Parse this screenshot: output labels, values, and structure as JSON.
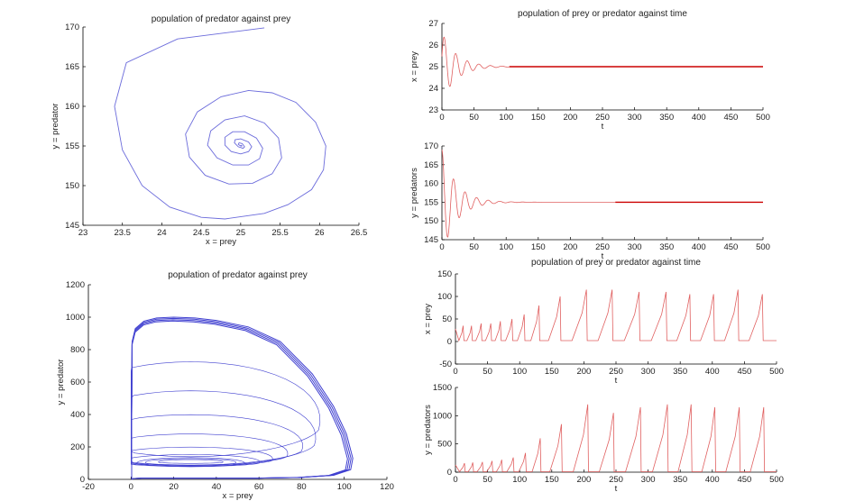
{
  "chart_data": [
    {
      "id": "phase1",
      "type": "line",
      "title": "population of predator against prey",
      "xlabel": "x = prey",
      "ylabel": "y = predator",
      "xlim": [
        23,
        26.5
      ],
      "ylim": [
        145,
        170
      ],
      "xticks": [
        "23",
        "23.5",
        "24",
        "24.5",
        "25",
        "25.5",
        "26",
        "26.5"
      ],
      "yticks": [
        "145",
        "150",
        "155",
        "160",
        "165",
        "170"
      ],
      "color": "#6b6bdb",
      "series": [
        {
          "x": [
            25.3,
            24.2,
            23.55,
            23.4,
            23.5,
            23.75,
            24.1,
            24.5,
            24.8,
            25.3,
            25.6,
            25.9,
            26.05,
            26.08,
            25.95,
            25.7,
            25.4,
            25.1,
            24.75,
            24.45,
            24.3,
            24.35,
            24.55,
            24.85,
            25.15,
            25.4,
            25.52,
            25.48,
            25.3,
            25.05,
            24.8,
            24.62,
            24.58,
            24.7,
            24.9,
            25.1,
            25.24,
            25.28,
            25.2,
            25.05,
            24.9,
            24.8,
            24.8,
            24.88,
            25.0,
            25.1,
            25.14,
            25.1,
            25.0,
            24.93,
            24.92,
            24.97,
            25.03,
            25.05,
            25.02,
            24.98,
            24.97,
            25.0,
            25.02,
            25.0
          ],
          "y": [
            169.9,
            168.5,
            165.5,
            160.0,
            154.5,
            150.0,
            147.3,
            146.0,
            145.8,
            146.5,
            147.6,
            149.5,
            152.0,
            155.0,
            158.0,
            160.5,
            161.7,
            162.0,
            161.2,
            159.3,
            156.5,
            153.6,
            151.3,
            150.2,
            150.3,
            151.5,
            153.5,
            156.0,
            157.9,
            158.8,
            158.3,
            156.9,
            155.1,
            153.5,
            152.6,
            152.6,
            153.4,
            154.7,
            156.0,
            156.8,
            156.8,
            156.1,
            155.1,
            154.3,
            154.0,
            154.3,
            154.9,
            155.5,
            155.9,
            155.8,
            155.4,
            154.9,
            154.7,
            154.9,
            155.3,
            155.4,
            155.2,
            155.0,
            155.0,
            155.1
          ]
        }
      ]
    },
    {
      "id": "prey1",
      "type": "line",
      "title": "population of prey or predator against time",
      "xlabel": "t",
      "ylabel": "x = prey",
      "xlim": [
        0,
        500
      ],
      "ylim": [
        23,
        27
      ],
      "xticks": [
        "0",
        "50",
        "100",
        "150",
        "200",
        "250",
        "300",
        "350",
        "400",
        "450",
        "500"
      ],
      "yticks": [
        "23",
        "24",
        "25",
        "26",
        "27"
      ],
      "color": "#e06060",
      "equilibrium": 25,
      "equilibrium_color": "#cc0000",
      "thick_from": 105,
      "osc": {
        "amplitude": 1.6,
        "decay": 0.045,
        "period": 18,
        "phase": 0.3
      }
    },
    {
      "id": "pred1",
      "type": "line",
      "title": "",
      "xlabel": "t",
      "ylabel": "y = predators",
      "xlim": [
        0,
        500
      ],
      "ylim": [
        145,
        170
      ],
      "xticks": [
        "0",
        "50",
        "100",
        "150",
        "200",
        "250",
        "300",
        "350",
        "400",
        "450",
        "500"
      ],
      "yticks": [
        "145",
        "150",
        "155",
        "160",
        "165",
        "170"
      ],
      "color": "#e06060",
      "equilibrium": 155,
      "equilibrium_color": "#cc0000",
      "thick_from": 270,
      "osc": {
        "amplitude": 14,
        "decay": 0.045,
        "period": 18,
        "phase": 1.5
      }
    },
    {
      "id": "phase2",
      "type": "line",
      "title": "population of predator against prey",
      "xlabel": "x = prey",
      "ylabel": "y = predator",
      "xlim": [
        -20,
        120
      ],
      "ylim": [
        0,
        1200
      ],
      "xticks": [
        "-20",
        "0",
        "20",
        "40",
        "60",
        "80",
        "100",
        "120"
      ],
      "yticks": [
        "0",
        "200",
        "400",
        "600",
        "800",
        "1000",
        "1200"
      ],
      "color": "#4040d0",
      "limit_cycle": {
        "x": [
          0.3,
          0.3,
          0.5,
          2,
          6,
          12,
          20,
          30,
          40,
          55,
          70,
          85,
          95,
          101,
          104,
          103,
          95,
          80,
          60,
          40,
          20,
          5,
          1,
          0.3
        ],
        "y": [
          0,
          400,
          850,
          930,
          975,
          995,
          1000,
          995,
          980,
          940,
          850,
          650,
          450,
          280,
          130,
          60,
          25,
          12,
          8,
          8,
          8,
          8,
          5,
          0
        ]
      },
      "spirals": [
        {
          "rx": 32,
          "ry": 38,
          "cy": 100
        },
        {
          "rx": 25,
          "ry": 28,
          "cy": 95
        },
        {
          "rx": 21,
          "ry": 20,
          "cy": 100
        },
        {
          "rx": 15,
          "ry": 12,
          "cy": 105
        },
        {
          "rx": 38,
          "ry": 60,
          "cy": 115
        },
        {
          "rx": 45,
          "ry": 100,
          "cy": 140
        },
        {
          "rx": 52,
          "ry": 160,
          "cy": 175
        },
        {
          "rx": 58,
          "ry": 240,
          "cy": 210
        },
        {
          "rx": 60,
          "ry": 300,
          "cy": 305
        }
      ],
      "center_x": 28
    },
    {
      "id": "prey2",
      "type": "line",
      "title": "population of prey or predator against time",
      "xlabel": "t",
      "ylabel": "x = prey",
      "xlim": [
        0,
        500
      ],
      "ylim": [
        -50,
        150
      ],
      "xticks": [
        "0",
        "50",
        "100",
        "150",
        "200",
        "250",
        "300",
        "350",
        "400",
        "450",
        "500"
      ],
      "yticks": [
        "-50",
        "0",
        "50",
        "100",
        "150"
      ],
      "color": "#e06060",
      "peaks_t": [
        12,
        25,
        40,
        55,
        70,
        88,
        107,
        130,
        163,
        204,
        244,
        286,
        328,
        365,
        402,
        440,
        478
      ],
      "peaks_v": [
        35,
        35,
        40,
        40,
        45,
        50,
        60,
        80,
        100,
        115,
        115,
        110,
        110,
        105,
        105,
        115,
        105
      ]
    },
    {
      "id": "pred2",
      "type": "line",
      "title": "",
      "xlabel": "t",
      "ylabel": "y = predators",
      "xlim": [
        0,
        500
      ],
      "ylim": [
        0,
        1500
      ],
      "xticks": [
        "0",
        "50",
        "100",
        "150",
        "200",
        "250",
        "300",
        "350",
        "400",
        "450",
        "500"
      ],
      "yticks": [
        "0",
        "500",
        "1000",
        "1500"
      ],
      "color": "#e06060",
      "peaks_t": [
        14,
        27,
        42,
        57,
        72,
        90,
        109,
        132,
        165,
        206,
        246,
        288,
        330,
        367,
        404,
        442,
        480
      ],
      "peaks_v": [
        160,
        170,
        180,
        200,
        220,
        260,
        340,
        600,
        850,
        1200,
        1050,
        1150,
        1200,
        1200,
        1150,
        1150,
        1150
      ]
    }
  ]
}
